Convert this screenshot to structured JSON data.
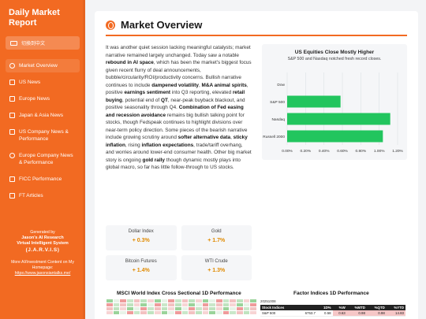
{
  "app": {
    "title": "Daily Market Report"
  },
  "sidebar": {
    "language_button": "切換到中文",
    "items": [
      {
        "label": "Market Overview",
        "icon": "globe-icon",
        "active": true
      },
      {
        "label": "US News",
        "icon": "flag-icon"
      },
      {
        "label": "Europe News",
        "icon": "bank-icon"
      },
      {
        "label": "Japan & Asia News",
        "icon": "flag-icon"
      },
      {
        "label": "US Company News & Performance",
        "icon": "building-icon"
      },
      {
        "label": "Europe Company News & Performance",
        "icon": "globe-icon"
      },
      {
        "label": "FICC Performance",
        "icon": "chart-icon"
      },
      {
        "label": "FT Articles",
        "icon": "newspaper-icon"
      }
    ],
    "footer": {
      "generated_by": "Generated by",
      "author_line": "Jason's AI Research",
      "assistant_line": "Virtual Intelligent System",
      "assistant_name": "(J.A.R.V.I.S)",
      "more_text": "More AI/Investment Content on My Homepage:",
      "link": "https://www.jasonsiantalks.me/"
    }
  },
  "main": {
    "title": "Market Overview",
    "narrative_html": "It was another quiet session lacking meaningful catalysts; market narrative remained largely unchanged. Today saw a notable <b>rebound in AI space</b>, which has been the market's biggest focus given recent flurry of deal announcements, bubble/circularity/ROI/productivity concerns. Bullish narrative continues to include <b>dampened volatility</b>, <b>M&amp;A animal spirits</b>, positive <b>earnings sentiment</b> into Q3 reporting, elevated <b>retail buying</b>, potential end of <b>QT</b>, near-peak buyback blackout, and positive seasonality through Q4. <b>Combination of Fed easing and recession avoidance</b> remains big bullish talking point for stocks, though Fedspeak continues to highlight divisions over near-term policy direction. Some pieces of the bearish narrative include growing scrutiny around <b>softer alternative data</b>, <b>sticky inflation</b>, rising <b>inflation expectations</b>, trade/tariff overhang, and worries around lower-end consumer health. Other big market story is ongoing <b>gold rally</b> though dynamic mostly plays into global macro, so far has little follow-through to US stocks.",
    "quotes": [
      {
        "name": "Dollar Index",
        "change": "+ 0.3%"
      },
      {
        "name": "Gold",
        "change": "+ 1.7%"
      },
      {
        "name": "Bitcoin Futures",
        "change": "+ 1.4%"
      },
      {
        "name": "WTI Crude",
        "change": "+ 1.3%"
      }
    ],
    "heatmap_title": "MSCI World Index Cross Sectional 1D Performance",
    "factor_title": "Factor Indices 1D Performance",
    "factor_table": {
      "date": "20251008",
      "headers": [
        "Stock Indices",
        "",
        "1D%",
        "%W",
        "%MTD",
        "%QTD",
        "%YTD"
      ],
      "rows": [
        [
          "S&P 500",
          "6753.7",
          "0.58",
          "0.63",
          "0.98",
          "0.98",
          "14.83"
        ]
      ]
    }
  },
  "chart_data": {
    "type": "bar",
    "orientation": "horizontal",
    "title": "US Equities Close Mostly Higher",
    "subtitle": "S&P 500 and Nasdaq notched fresh record closes.",
    "categories": [
      "Dow",
      "S&P 500",
      "Nasdaq",
      "Russell 2000"
    ],
    "values": [
      0.0,
      0.58,
      1.12,
      1.04
    ],
    "xlim": [
      0.0,
      1.2
    ],
    "xticks": [
      "0.00%",
      "0.20%",
      "0.40%",
      "0.60%",
      "0.80%",
      "1.00%",
      "1.20%"
    ],
    "grid": true,
    "bar_color": "#22c55e"
  },
  "colors": {
    "accent": "#f26a22",
    "positive_bar": "#22c55e"
  }
}
